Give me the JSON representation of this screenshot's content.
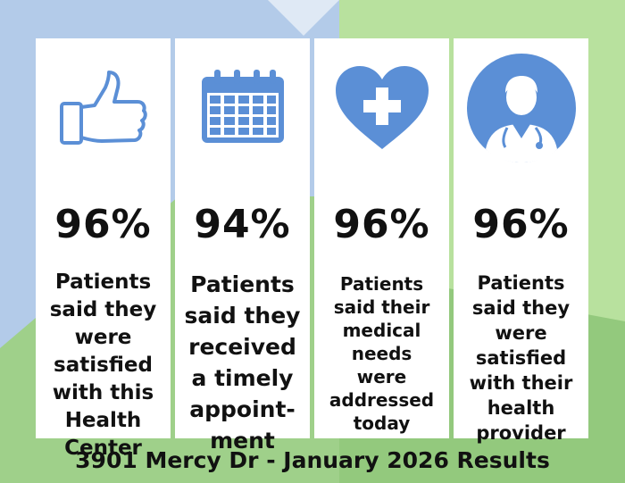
{
  "cards": [
    {
      "icon": "thumbs-up-icon",
      "percent": "96%",
      "text": "Patients\nsaid they\nwere\nsatisfied\nwith this\nHealth\nCenter"
    },
    {
      "icon": "calendar-icon",
      "percent": "94%",
      "text": "Patients\nsaid they\nreceived\na timely\nappoint-\nment"
    },
    {
      "icon": "heart-medical-icon",
      "percent": "96%",
      "text": "Patients\nsaid their\nmedical\nneeds\nwere\naddressed\ntoday"
    },
    {
      "icon": "doctor-icon",
      "percent": "96%",
      "text": "Patients\nsaid they\nwere\nsatisfied\nwith their\nhealth\nprovider"
    }
  ],
  "footer": "3901 Mercy Dr - January 2026 Results",
  "colors": {
    "icon_blue": "#5b8fd6",
    "bg_blue": "#b3cbe9",
    "bg_light_green": "#b8e19e",
    "bg_green": "#93c97d",
    "text": "#111111"
  }
}
